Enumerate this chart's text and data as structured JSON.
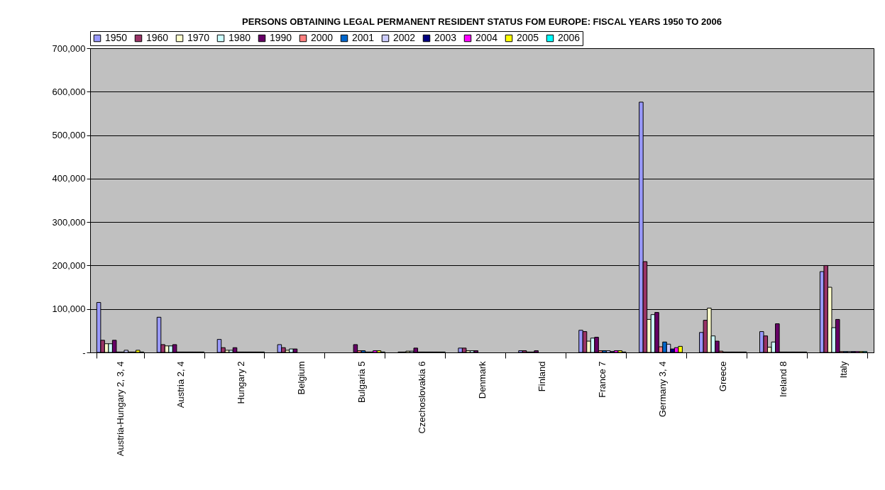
{
  "chart_data": {
    "type": "bar",
    "title": "PERSONS OBTAINING LEGAL PERMANENT RESIDENT STATUS FOM EUROPE: FISCAL YEARS 1950 TO 2006",
    "categories": [
      "Austria-Hungary 2, 3, 4",
      "Austria 2, 4",
      "Hungary 2",
      "Belgium",
      "Bulgaria 5",
      "Czechoslovakia 6",
      "Denmark",
      "Finland",
      "France 7",
      "Germany 3, 4",
      "Greece",
      "Ireland 8",
      "Italy"
    ],
    "series": [
      {
        "name": "1950",
        "color": "#9999ff",
        "values": [
          115000,
          81000,
          30000,
          18000,
          null,
          1000,
          10000,
          4000,
          51000,
          576000,
          46000,
          48000,
          186000
        ]
      },
      {
        "name": "1960",
        "color": "#993366",
        "values": [
          28000,
          18000,
          11000,
          11000,
          null,
          1000,
          10000,
          4000,
          48000,
          209000,
          74000,
          38000,
          200000
        ]
      },
      {
        "name": "1970",
        "color": "#ffffcc",
        "values": [
          20000,
          15000,
          5000,
          5000,
          null,
          3000,
          4000,
          1000,
          26000,
          76000,
          102000,
          12000,
          150000
        ]
      },
      {
        "name": "1980",
        "color": "#ccffff",
        "values": [
          20000,
          15000,
          5000,
          8000,
          null,
          3000,
          4000,
          1000,
          33000,
          87000,
          38000,
          24000,
          57000
        ]
      },
      {
        "name": "1990",
        "color": "#660066",
        "values": [
          28000,
          18000,
          11000,
          8000,
          18000,
          10000,
          4000,
          4000,
          35000,
          92000,
          26000,
          66000,
          76000
        ]
      },
      {
        "name": "2000",
        "color": "#ff8080",
        "values": [
          1000,
          1000,
          1000,
          null,
          4000,
          1000,
          null,
          null,
          4000,
          13000,
          3000,
          1000,
          2000
        ]
      },
      {
        "name": "2001",
        "color": "#0066cc",
        "values": [
          1000,
          1000,
          1000,
          null,
          4000,
          1000,
          null,
          null,
          4000,
          24000,
          1000,
          1000,
          2000
        ]
      },
      {
        "name": "2002",
        "color": "#ccccff",
        "values": [
          5000,
          1000,
          1000,
          null,
          1000,
          1000,
          null,
          null,
          4000,
          19000,
          1000,
          1000,
          2000
        ]
      },
      {
        "name": "2003",
        "color": "#000080",
        "values": [
          1000,
          1000,
          1000,
          null,
          1000,
          1000,
          null,
          null,
          2000,
          8000,
          1000,
          1000,
          2000
        ]
      },
      {
        "name": "2004",
        "color": "#ff00ff",
        "values": [
          1000,
          1000,
          1000,
          null,
          4000,
          1000,
          null,
          null,
          4000,
          11000,
          1000,
          1000,
          2000
        ]
      },
      {
        "name": "2005",
        "color": "#ffff00",
        "values": [
          5000,
          1000,
          1000,
          null,
          4000,
          1000,
          null,
          null,
          4000,
          14000,
          1000,
          1000,
          2000
        ]
      },
      {
        "name": "2006",
        "color": "#00ffff",
        "values": [
          1000,
          1000,
          1000,
          null,
          1000,
          1000,
          null,
          null,
          1000,
          null,
          1000,
          1000,
          2000
        ]
      }
    ],
    "ylim": [
      0,
      700000
    ],
    "yticks": [
      {
        "value": 0,
        "label": "-"
      },
      {
        "value": 100000,
        "label": "100,000"
      },
      {
        "value": 200000,
        "label": "200,000"
      },
      {
        "value": 300000,
        "label": "300,000"
      },
      {
        "value": 400000,
        "label": "400,000"
      },
      {
        "value": 500000,
        "label": "500,000"
      },
      {
        "value": 600000,
        "label": "600,000"
      },
      {
        "value": 700000,
        "label": "700,000"
      }
    ],
    "grid": "y",
    "legend": "top"
  }
}
